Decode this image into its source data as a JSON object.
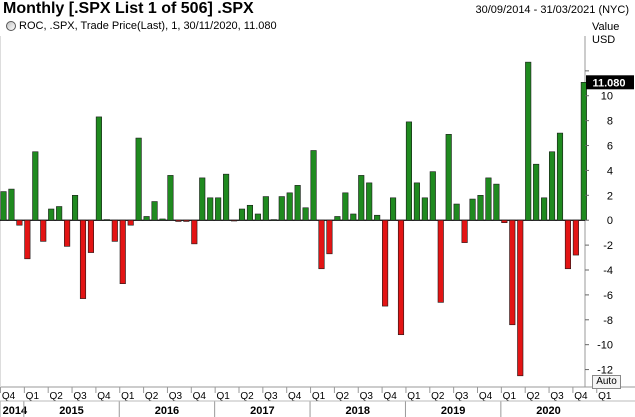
{
  "header": {
    "title": "Monthly [.SPX List 1 of 506] .SPX",
    "date_range": "30/09/2014 - 31/03/2021 (NYC)"
  },
  "legend": {
    "text": "ROC, .SPX, Trade Price(Last),  1, 30/11/2020, 11.080"
  },
  "auto_button": {
    "label": "Auto"
  },
  "colors": {
    "up": "#1f8a1f",
    "down": "#e31414",
    "frame": "#888888",
    "marker": "#000000"
  },
  "chart_data": {
    "type": "bar",
    "yaxis_title": "Value",
    "yaxis_unit": "USD",
    "ylim": [
      -13.4,
      14.8
    ],
    "yticks": [
      -12,
      -10,
      -8,
      -6,
      -4,
      -2,
      0,
      2,
      4,
      6,
      8,
      10,
      12
    ],
    "last_value_label": "11.080",
    "last_value": 11.08,
    "quarter_labels": [
      "Q4",
      "Q1",
      "Q2",
      "Q3",
      "Q4",
      "Q1",
      "Q2",
      "Q3",
      "Q4",
      "Q1",
      "Q2",
      "Q3",
      "Q4",
      "Q1",
      "Q2",
      "Q3",
      "Q4",
      "Q1",
      "Q2",
      "Q3",
      "Q4",
      "Q1",
      "Q2",
      "Q3",
      "Q4",
      "Q1"
    ],
    "year_labels": [
      "2014",
      "2015",
      "2016",
      "2017",
      "2018",
      "2019",
      "2020"
    ],
    "series": [
      {
        "name": ".SPX ROC",
        "x": [
          "Oct 2014",
          "Nov 2014",
          "Dec 2014",
          "Jan 2015",
          "Feb 2015",
          "Mar 2015",
          "Apr 2015",
          "May 2015",
          "Jun 2015",
          "Jul 2015",
          "Aug 2015",
          "Sep 2015",
          "Oct 2015",
          "Nov 2015",
          "Dec 2015",
          "Jan 2016",
          "Feb 2016",
          "Mar 2016",
          "Apr 2016",
          "May 2016",
          "Jun 2016",
          "Jul 2016",
          "Aug 2016",
          "Sep 2016",
          "Oct 2016",
          "Nov 2016",
          "Dec 2016",
          "Jan 2017",
          "Feb 2017",
          "Mar 2017",
          "Apr 2017",
          "May 2017",
          "Jun 2017",
          "Jul 2017",
          "Aug 2017",
          "Sep 2017",
          "Oct 2017",
          "Nov 2017",
          "Dec 2017",
          "Jan 2018",
          "Feb 2018",
          "Mar 2018",
          "Apr 2018",
          "May 2018",
          "Jun 2018",
          "Jul 2018",
          "Aug 2018",
          "Sep 2018",
          "Oct 2018",
          "Nov 2018",
          "Dec 2018",
          "Jan 2019",
          "Feb 2019",
          "Mar 2019",
          "Apr 2019",
          "May 2019",
          "Jun 2019",
          "Jul 2019",
          "Aug 2019",
          "Sep 2019",
          "Oct 2019",
          "Nov 2019",
          "Dec 2019",
          "Jan 2020",
          "Feb 2020",
          "Mar 2020",
          "Apr 2020",
          "May 2020",
          "Jun 2020",
          "Jul 2020",
          "Aug 2020",
          "Sep 2020",
          "Oct 2020",
          "Nov 2020"
        ],
        "values": [
          2.3,
          2.5,
          -0.4,
          -3.1,
          5.5,
          -1.7,
          0.9,
          1.1,
          -2.1,
          2.0,
          -6.3,
          -2.6,
          8.3,
          0.05,
          -1.7,
          -5.1,
          -0.4,
          6.6,
          0.3,
          1.5,
          0.1,
          3.6,
          -0.1,
          -0.1,
          -1.9,
          3.4,
          1.8,
          1.8,
          3.7,
          -0.04,
          0.9,
          1.2,
          0.5,
          1.9,
          0.05,
          1.9,
          2.2,
          2.8,
          1.0,
          5.6,
          -3.9,
          -2.7,
          0.3,
          2.2,
          0.5,
          3.6,
          3.0,
          0.4,
          -6.9,
          1.8,
          -9.2,
          7.9,
          3.0,
          1.8,
          3.9,
          -6.6,
          6.9,
          1.3,
          -1.8,
          1.7,
          2.0,
          3.4,
          2.9,
          -0.2,
          -8.4,
          -12.5,
          12.7,
          4.5,
          1.8,
          5.5,
          7.0,
          -3.9,
          -2.8,
          11.08
        ]
      }
    ]
  }
}
